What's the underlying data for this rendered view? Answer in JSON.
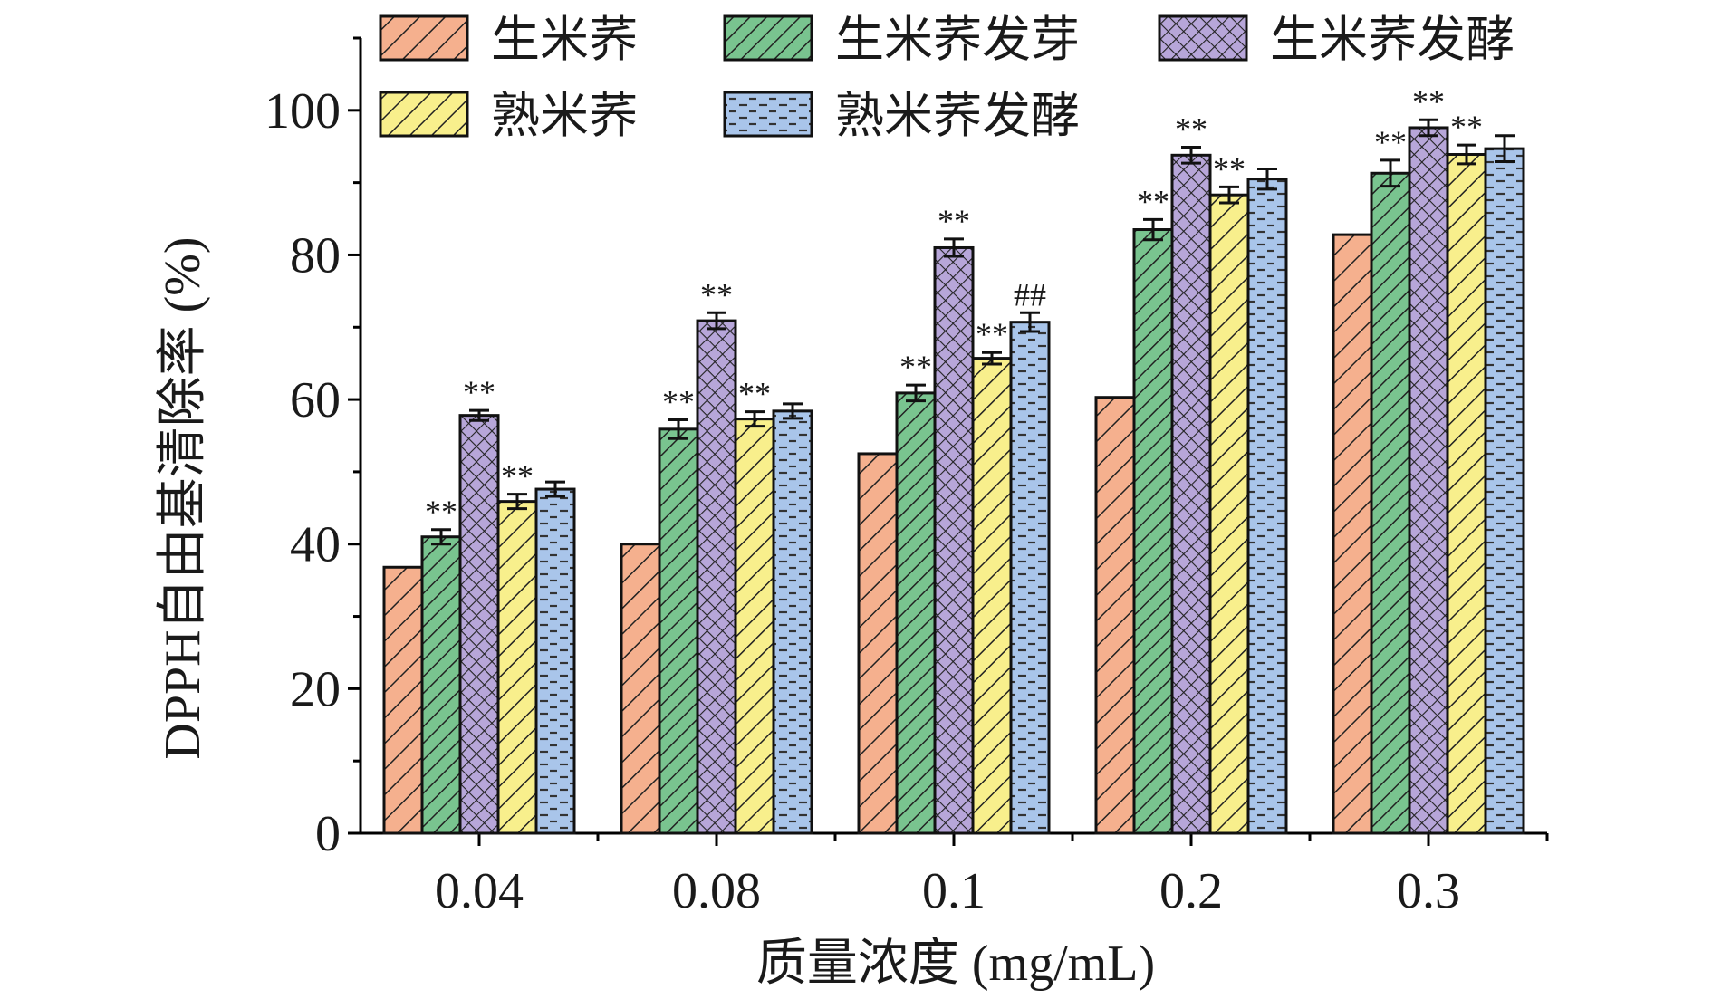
{
  "chart_data": {
    "type": "bar",
    "title": "",
    "xlabel": "质量浓度 (mg/mL)",
    "ylabel": "DPPH自由基清除率 (%)",
    "ylim": [
      0,
      110
    ],
    "yticks": [
      0,
      20,
      40,
      60,
      80,
      100
    ],
    "categories": [
      "0.04",
      "0.08",
      "0.1",
      "0.2",
      "0.3"
    ],
    "legend_position": "top",
    "series": [
      {
        "name": "生米荞",
        "color": "#f5b08e",
        "pattern": "diag-wide",
        "values": [
          36.8,
          40.0,
          52.5,
          60.3,
          82.8
        ],
        "errors": [
          0,
          0,
          0,
          0,
          0
        ],
        "marks": [
          "",
          "",
          "",
          "",
          ""
        ]
      },
      {
        "name": "生米荞发芽",
        "color": "#79c48f",
        "pattern": "diag-dense",
        "values": [
          41.0,
          55.9,
          60.9,
          83.5,
          91.3
        ],
        "errors": [
          1.0,
          1.3,
          1.1,
          1.4,
          1.8
        ],
        "marks": [
          "**",
          "**",
          "**",
          "**",
          "**"
        ]
      },
      {
        "name": "生米荞发酵",
        "color": "#b7a6d9",
        "pattern": "crosshatch",
        "values": [
          57.8,
          70.9,
          81.0,
          93.8,
          97.6
        ],
        "errors": [
          0.7,
          1.1,
          1.2,
          1.1,
          1.1
        ],
        "marks": [
          "**",
          "**",
          "**",
          "**",
          "**"
        ]
      },
      {
        "name": "熟米荞",
        "color": "#f8ef8c",
        "pattern": "diag-yellow",
        "values": [
          45.9,
          57.3,
          65.7,
          88.3,
          93.9
        ],
        "errors": [
          1.0,
          1.0,
          0.8,
          1.1,
          1.3
        ],
        "marks": [
          "**",
          "**",
          "**",
          "**",
          "**"
        ]
      },
      {
        "name": "熟米荞发酵",
        "color": "#a9c5ea",
        "pattern": "dashes",
        "values": [
          47.6,
          58.4,
          70.7,
          90.5,
          94.7
        ],
        "errors": [
          1.0,
          1.0,
          1.3,
          1.4,
          1.8
        ],
        "marks": [
          "",
          "",
          "##",
          "",
          ""
        ]
      }
    ]
  }
}
